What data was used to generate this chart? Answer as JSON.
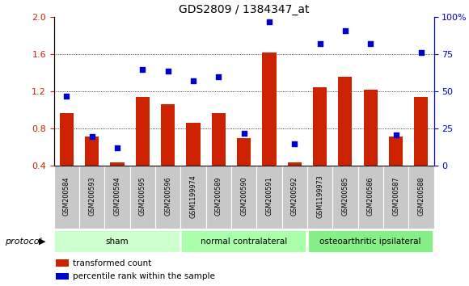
{
  "title": "GDS2809 / 1384347_at",
  "samples": [
    "GSM200584",
    "GSM200593",
    "GSM200594",
    "GSM200595",
    "GSM200596",
    "GSM1199974",
    "GSM200589",
    "GSM200590",
    "GSM200591",
    "GSM200592",
    "GSM1199973",
    "GSM200585",
    "GSM200586",
    "GSM200587",
    "GSM200588"
  ],
  "bar_values": [
    0.97,
    0.72,
    0.44,
    1.14,
    1.06,
    0.86,
    0.97,
    0.7,
    1.62,
    0.44,
    1.25,
    1.36,
    1.22,
    0.72,
    1.14
  ],
  "dot_values": [
    47,
    20,
    12,
    65,
    64,
    57,
    60,
    22,
    97,
    15,
    82,
    91,
    82,
    21,
    76
  ],
  "bar_color": "#cc2200",
  "dot_color": "#0000cc",
  "ylim_left": [
    0.4,
    2.0
  ],
  "ylim_right": [
    0,
    100
  ],
  "yticks_left": [
    0.4,
    0.8,
    1.2,
    1.6,
    2.0
  ],
  "yticks_right": [
    0,
    25,
    50,
    75,
    100
  ],
  "ytick_labels_right": [
    "0",
    "25",
    "50",
    "75",
    "100%"
  ],
  "groups": [
    {
      "label": "sham",
      "start": 0,
      "end": 4,
      "color": "#ccffcc"
    },
    {
      "label": "normal contralateral",
      "start": 5,
      "end": 9,
      "color": "#aaffaa"
    },
    {
      "label": "osteoarthritic ipsilateral",
      "start": 10,
      "end": 14,
      "color": "#88ee88"
    }
  ],
  "protocol_label": "protocol",
  "legend_items": [
    {
      "label": "transformed count",
      "color": "#cc2200"
    },
    {
      "label": "percentile rank within the sample",
      "color": "#0000cc"
    }
  ],
  "background_color": "#ffffff",
  "bar_bottom": 0.4,
  "tick_bg_color": "#c8c8c8",
  "grid_color": "#000000"
}
